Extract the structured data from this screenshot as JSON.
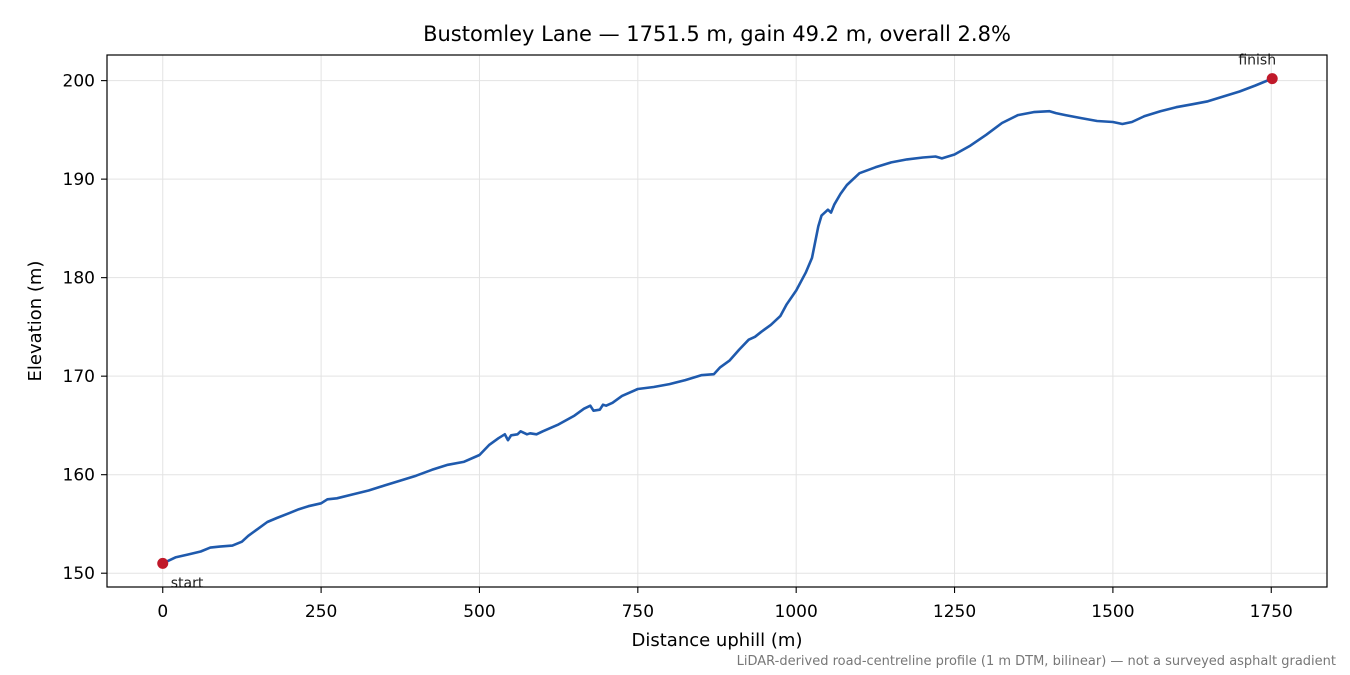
{
  "chart_data": {
    "type": "line",
    "title": "Bustomley Lane — 1751.5 m, gain 49.2 m, overall 2.8%",
    "xlabel": "Distance uphill (m)",
    "ylabel": "Elevation (m)",
    "xlim": [
      -88,
      1751.5
    ],
    "ylim": [
      148.6,
      202.6
    ],
    "x_ticks": [
      0,
      250,
      500,
      750,
      1000,
      1250,
      1500,
      1750
    ],
    "x_tick_labels": [
      "0",
      "250",
      "500",
      "750",
      "1000",
      "1250",
      "1500",
      "1750"
    ],
    "y_ticks": [
      150,
      160,
      170,
      180,
      190,
      200
    ],
    "y_tick_labels": [
      "150",
      "160",
      "170",
      "180",
      "190",
      "200"
    ],
    "grid": true,
    "legend": "none",
    "series": [
      {
        "color": "#1f5aad",
        "x": [
          0,
          20,
          40,
          60,
          75,
          90,
          110,
          125,
          135,
          150,
          165,
          180,
          200,
          215,
          230,
          250,
          260,
          275,
          300,
          325,
          350,
          375,
          400,
          425,
          450,
          475,
          500,
          515,
          530,
          540,
          545,
          550,
          560,
          565,
          575,
          580,
          590,
          600,
          625,
          650,
          665,
          675,
          680,
          690,
          695,
          700,
          710,
          725,
          750,
          775,
          800,
          825,
          850,
          870,
          880,
          895,
          910,
          925,
          935,
          945,
          960,
          975,
          985,
          1000,
          1015,
          1025,
          1035,
          1040,
          1050,
          1055,
          1060,
          1070,
          1080,
          1100,
          1125,
          1150,
          1175,
          1200,
          1220,
          1230,
          1250,
          1275,
          1300,
          1325,
          1350,
          1375,
          1400,
          1410,
          1425,
          1450,
          1475,
          1500,
          1515,
          1530,
          1550,
          1575,
          1600,
          1625,
          1650,
          1675,
          1700,
          1725,
          1751.5
        ],
        "y": [
          151.0,
          151.6,
          151.9,
          152.2,
          152.6,
          152.7,
          152.8,
          153.2,
          153.8,
          154.5,
          155.2,
          155.6,
          156.1,
          156.5,
          156.8,
          157.1,
          157.5,
          157.6,
          158.0,
          158.4,
          158.9,
          159.4,
          159.9,
          160.5,
          161.0,
          161.3,
          162.0,
          163.0,
          163.7,
          164.1,
          163.5,
          164.0,
          164.1,
          164.4,
          164.1,
          164.2,
          164.1,
          164.4,
          165.1,
          166.0,
          166.7,
          167.0,
          166.5,
          166.6,
          167.1,
          167.0,
          167.3,
          168.0,
          168.7,
          168.9,
          169.2,
          169.6,
          170.1,
          170.2,
          170.9,
          171.6,
          172.7,
          173.7,
          174.0,
          174.5,
          175.2,
          176.1,
          177.3,
          178.7,
          180.5,
          182.0,
          185.2,
          186.3,
          186.9,
          186.6,
          187.4,
          188.5,
          189.4,
          190.6,
          191.2,
          191.7,
          192.0,
          192.2,
          192.3,
          192.1,
          192.5,
          193.4,
          194.5,
          195.7,
          196.5,
          196.8,
          196.9,
          196.7,
          196.5,
          196.2,
          195.9,
          195.8,
          195.6,
          195.8,
          196.4,
          196.9,
          197.3,
          197.6,
          197.9,
          198.4,
          198.9,
          199.5,
          200.2
        ]
      }
    ],
    "annotations": [
      {
        "text": "start",
        "x": 0,
        "y": 151.0
      },
      {
        "text": "finish",
        "x": 1751.5,
        "y": 200.2
      }
    ],
    "marker_color": "#c0192a",
    "footnote": "LiDAR-derived road-centreline profile (1 m DTM, bilinear) — not a surveyed asphalt gradient"
  }
}
